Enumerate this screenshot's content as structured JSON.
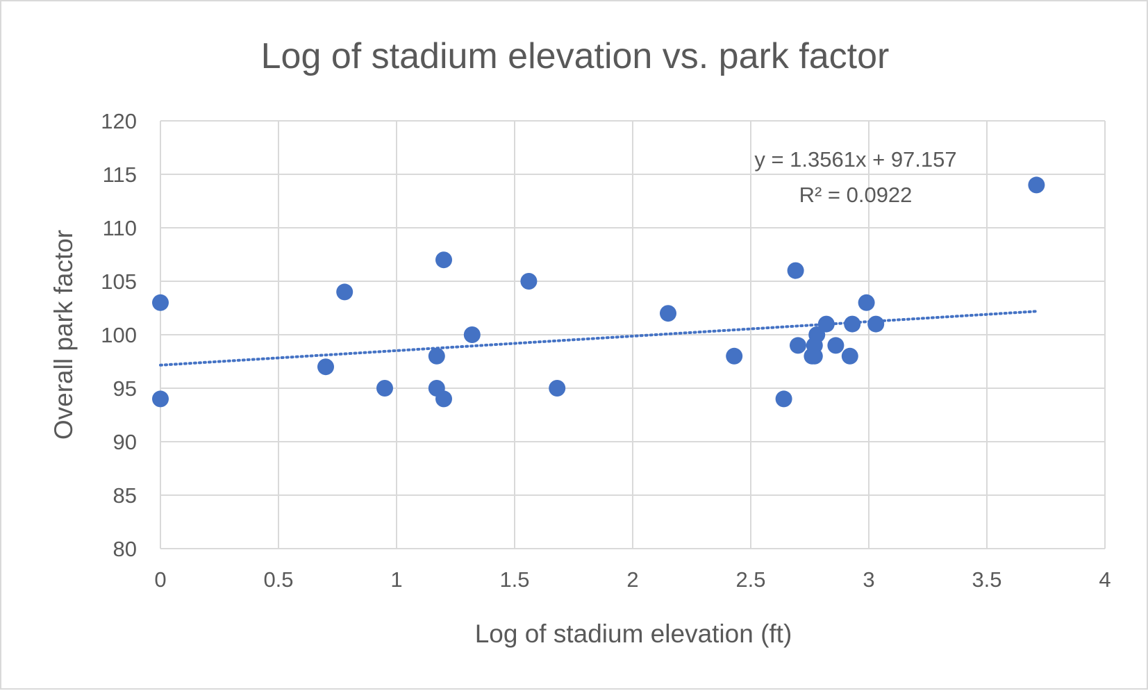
{
  "chart_data": {
    "type": "scatter",
    "title": "Log of stadium elevation vs. park factor",
    "xlabel": "Log of stadium elevation (ft)",
    "ylabel": "Overall park factor",
    "xlim": [
      0,
      4
    ],
    "ylim": [
      80,
      120
    ],
    "x_ticks": [
      "0",
      "0.5",
      "1",
      "1.5",
      "2",
      "2.5",
      "3",
      "3.5",
      "4"
    ],
    "y_ticks": [
      "80",
      "85",
      "90",
      "95",
      "100",
      "105",
      "110",
      "115",
      "120"
    ],
    "grid": true,
    "legend": "none",
    "marker_color": "#4472c4",
    "points": [
      {
        "x": 0.0,
        "y": 103
      },
      {
        "x": 0.0,
        "y": 94
      },
      {
        "x": 0.7,
        "y": 97
      },
      {
        "x": 0.78,
        "y": 104
      },
      {
        "x": 0.95,
        "y": 95
      },
      {
        "x": 1.17,
        "y": 98
      },
      {
        "x": 1.17,
        "y": 95
      },
      {
        "x": 1.2,
        "y": 107
      },
      {
        "x": 1.2,
        "y": 94
      },
      {
        "x": 1.32,
        "y": 100
      },
      {
        "x": 1.56,
        "y": 105
      },
      {
        "x": 1.68,
        "y": 95
      },
      {
        "x": 2.15,
        "y": 102
      },
      {
        "x": 2.43,
        "y": 98
      },
      {
        "x": 2.64,
        "y": 94
      },
      {
        "x": 2.69,
        "y": 106
      },
      {
        "x": 2.7,
        "y": 99
      },
      {
        "x": 2.76,
        "y": 98
      },
      {
        "x": 2.77,
        "y": 99
      },
      {
        "x": 2.77,
        "y": 98
      },
      {
        "x": 2.78,
        "y": 100
      },
      {
        "x": 2.82,
        "y": 101
      },
      {
        "x": 2.86,
        "y": 99
      },
      {
        "x": 2.92,
        "y": 98
      },
      {
        "x": 2.93,
        "y": 101
      },
      {
        "x": 2.99,
        "y": 103
      },
      {
        "x": 3.03,
        "y": 101
      },
      {
        "x": 3.71,
        "y": 114
      }
    ],
    "trendline": {
      "type": "linear",
      "slope": 1.3561,
      "intercept": 97.157,
      "x_range": [
        0,
        3.71
      ],
      "equation": "y = 1.3561x + 97.157",
      "r_squared": "R² = 0.0922"
    }
  }
}
